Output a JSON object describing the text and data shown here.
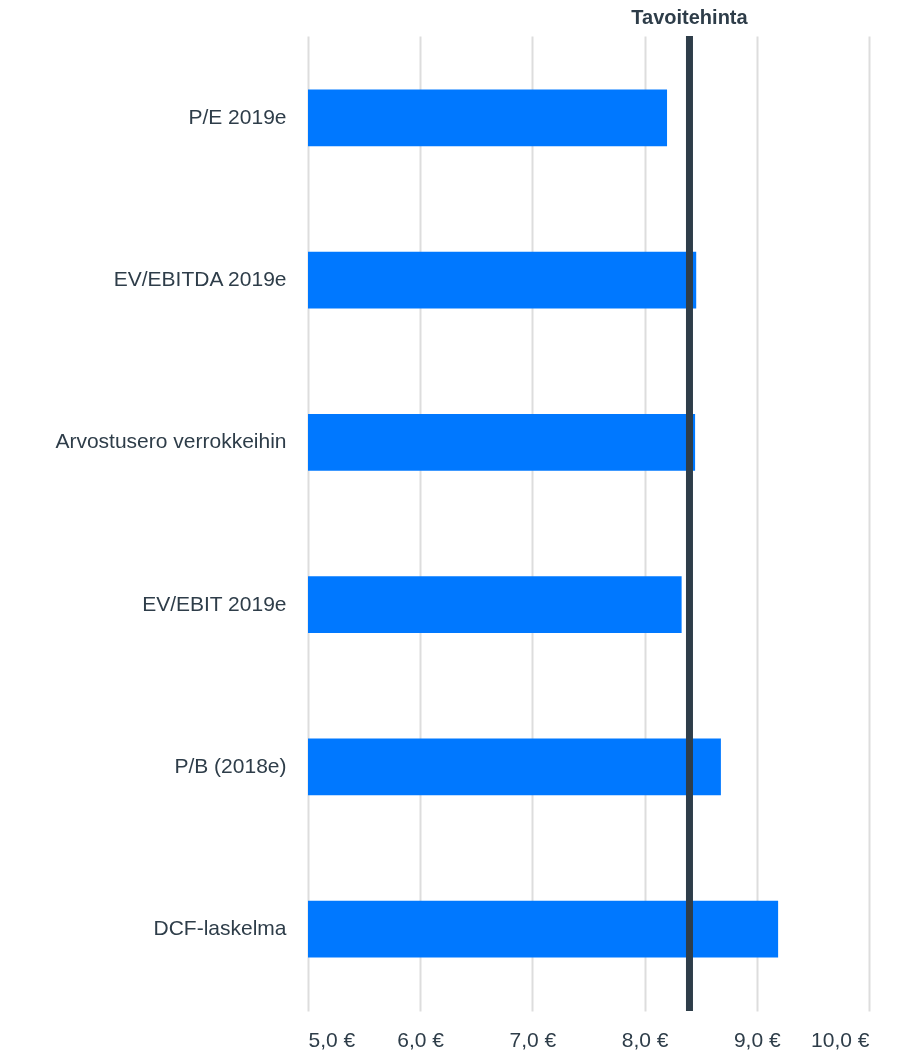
{
  "chart_data": {
    "type": "bar",
    "orientation": "horizontal",
    "categories": [
      "P/E 2019e",
      "EV/EBITDA 2019e",
      "Arvostusero verrokkeihin",
      "EV/EBIT 2019e",
      "P/B (2018e)",
      "DCF-laskelma"
    ],
    "values": [
      8.2,
      8.46,
      8.45,
      8.33,
      8.68,
      9.19
    ],
    "color": "#0078ff",
    "xlim": [
      5,
      10
    ],
    "xticks": [
      {
        "value": 5,
        "label": "5,0 €"
      },
      {
        "value": 6,
        "label": "6,0 €"
      },
      {
        "value": 7,
        "label": "7,0 €"
      },
      {
        "value": 8,
        "label": "8,0 €"
      },
      {
        "value": 9,
        "label": "9,0 €"
      },
      {
        "value": 10,
        "label": "10,0 €"
      }
    ],
    "grid": "x",
    "ref_lines": [
      {
        "axis": "x",
        "value": 8.4,
        "label": "Tavoitehinta",
        "color": "#2e3d49"
      }
    ]
  }
}
